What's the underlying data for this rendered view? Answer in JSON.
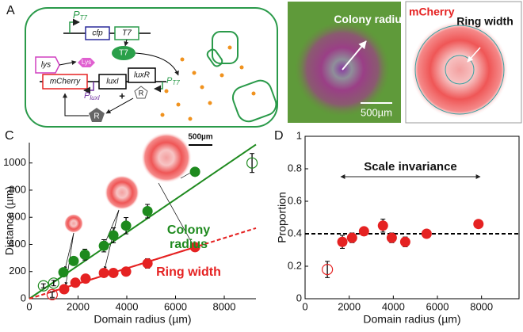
{
  "panels": {
    "a": {
      "label": "A",
      "p_t7_top": {
        "main": "P",
        "sub": "T7"
      },
      "cfp": "cfp",
      "t7_gene": "T7",
      "t7_protein": "T7",
      "lys_gene": "lys",
      "lys_protein": "Lys",
      "mcherry": "mCherry",
      "luxi": "luxI",
      "luxr": "luxR",
      "p_t7_right": {
        "main": "P",
        "sub": "T7"
      },
      "p_luxi": {
        "main": "P",
        "sub": "luxI"
      },
      "r_small": "R",
      "r_large": "R",
      "plus": "+"
    },
    "b": {
      "label": "B",
      "colony_radius": "Colony radius",
      "scale_bar": "500µm",
      "mcherry": "mCherry",
      "ring_width": "Ring width"
    }
  },
  "chart_data": [
    {
      "type": "scatter",
      "panel_label": "C",
      "x_label": "Domain radius (µm)",
      "y_label": "Distance (µm)",
      "scale_bar": "500µm",
      "xlim": [
        0,
        9300
      ],
      "ylim": [
        0,
        1150
      ],
      "xticks": [
        0,
        2000,
        4000,
        6000,
        8000
      ],
      "yticks": [
        0,
        200,
        400,
        600,
        800,
        1000
      ],
      "box": false,
      "series": [
        {
          "name": "Colony radius",
          "color": "#1e8a1e",
          "x": [
            1400,
            1820,
            2280,
            3060,
            3450,
            3970,
            4850,
            6800
          ],
          "values": [
            195,
            278,
            325,
            390,
            467,
            538,
            645,
            935
          ],
          "errors": [
            30,
            30,
            40,
            45,
            55,
            60,
            50,
            30
          ],
          "open_x": [
            580,
            1000,
            9140
          ],
          "open_values": [
            95,
            115,
            1000
          ],
          "open_errors": [
            15,
            20,
            70
          ],
          "fit": {
            "x": [
              0,
              9300
            ],
            "values": [
              0,
              1136
            ]
          },
          "fit_dash_outside": false
        },
        {
          "name": "Ring width",
          "color": "#e52222",
          "x": [
            1430,
            1890,
            2310,
            3060,
            3450,
            3970,
            4850,
            6800
          ],
          "values": [
            70,
            118,
            148,
            190,
            190,
            200,
            260,
            380
          ],
          "errors": [
            30,
            30,
            25,
            25,
            30,
            25,
            35,
            25
          ],
          "open_x": [
            940
          ],
          "open_values": [
            30
          ],
          "open_errors": [
            20
          ],
          "fit": {
            "x": [
              0,
              9300
            ],
            "values": [
              0,
              520
            ]
          },
          "fit_dash_outside": true
        }
      ]
    },
    {
      "type": "scatter",
      "panel_label": "D",
      "x_label": "Domain radius (µm)",
      "y_label": "Proportion",
      "annotation": "Scale invariance",
      "xlim": [
        0,
        9700
      ],
      "ylim": [
        0,
        1
      ],
      "xticks": [
        0,
        2000,
        4000,
        6000,
        8000
      ],
      "yticks": [
        0,
        0.2,
        0.4,
        0.6,
        0.8,
        1
      ],
      "box": true,
      "hline": 0.4,
      "series": [
        {
          "color": "#e52222",
          "x": [
            1690,
            2130,
            2670,
            3530,
            3930,
            4540,
            5510,
            7860
          ],
          "values": [
            0.35,
            0.375,
            0.415,
            0.45,
            0.375,
            0.35,
            0.4,
            0.46
          ],
          "errors": [
            0.04,
            0.03,
            0.02,
            0.04,
            0.03,
            0.03,
            0.02,
            0.02
          ],
          "open_x": [
            1010
          ],
          "open_values": [
            0.18
          ],
          "open_errors": [
            0.05
          ]
        }
      ]
    }
  ]
}
